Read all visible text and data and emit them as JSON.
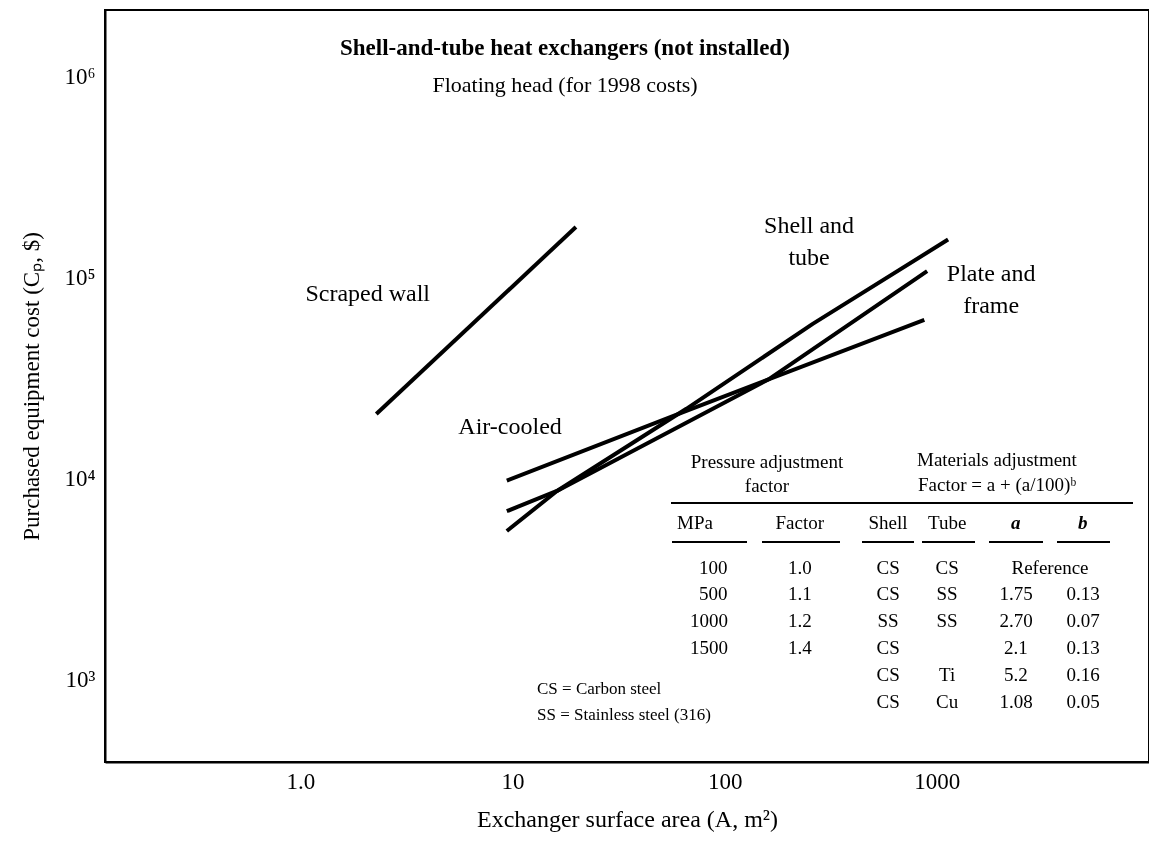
{
  "chart_data": {
    "type": "line",
    "title": "Shell-and-tube heat exchangers (not installed)",
    "subtitle": "Floating head (for 1998 costs)",
    "xlabel": "Exchanger surface area (A, m²)",
    "ylabel": "Purchased equipment cost (Cₚ, $)",
    "log": "xy",
    "grid": false,
    "line_style": "solid",
    "marker": "none",
    "xlim": [
      0.12,
      10000
    ],
    "ylim": [
      390,
      2150000
    ],
    "xticks": [
      {
        "value": 1,
        "label": "1.0"
      },
      10,
      100,
      1000
    ],
    "yticks": [
      {
        "value": 1000,
        "label": "10³"
      },
      {
        "value": 10000,
        "label": "10⁴"
      },
      {
        "value": 100000,
        "label": "10⁵"
      },
      {
        "value": 1000000,
        "label": "10⁶"
      }
    ],
    "series": [
      {
        "name": "Scraped wall",
        "color": "#000000",
        "x": [
          2.28,
          19.9
        ],
        "values": [
          21000,
          179000
        ]
      },
      {
        "name": "Air-cooled",
        "color": "#000000",
        "x": [
          9.4,
          66,
          873
        ],
        "values": [
          9800,
          21800,
          61800
        ]
      },
      {
        "name": "Shell and tube",
        "color": "#000000",
        "x": [
          9.4,
          16.2,
          66,
          260,
          1130
        ],
        "values": [
          5500,
          8700,
          22300,
          59000,
          155000
        ]
      },
      {
        "name": "Plate and frame",
        "color": "#000000",
        "x": [
          9.4,
          16.2,
          163,
          900
        ],
        "values": [
          6900,
          8700,
          31500,
          108000
        ]
      }
    ],
    "annotations": [
      "Pressure adjustment factor",
      "Materials adjustment",
      "Factor = a + (a/100)ᵇ",
      "MPa",
      "Factor",
      "Shell",
      "Tube",
      "a",
      "b",
      "100",
      "1.0",
      "500",
      "1.1",
      "1000",
      "1.2",
      "1500",
      "1.4",
      "CS",
      "CS",
      "Reference",
      "CS",
      "SS",
      "1.75",
      "0.13",
      "SS",
      "SS",
      "2.70",
      "0.07",
      "CS",
      "2.1",
      "0.13",
      "CS",
      "Ti",
      "5.2",
      "0.16",
      "CS",
      "Cu",
      "1.08",
      "0.05",
      "CS = Carbon steel",
      "SS = Stainless steel (316)"
    ]
  }
}
